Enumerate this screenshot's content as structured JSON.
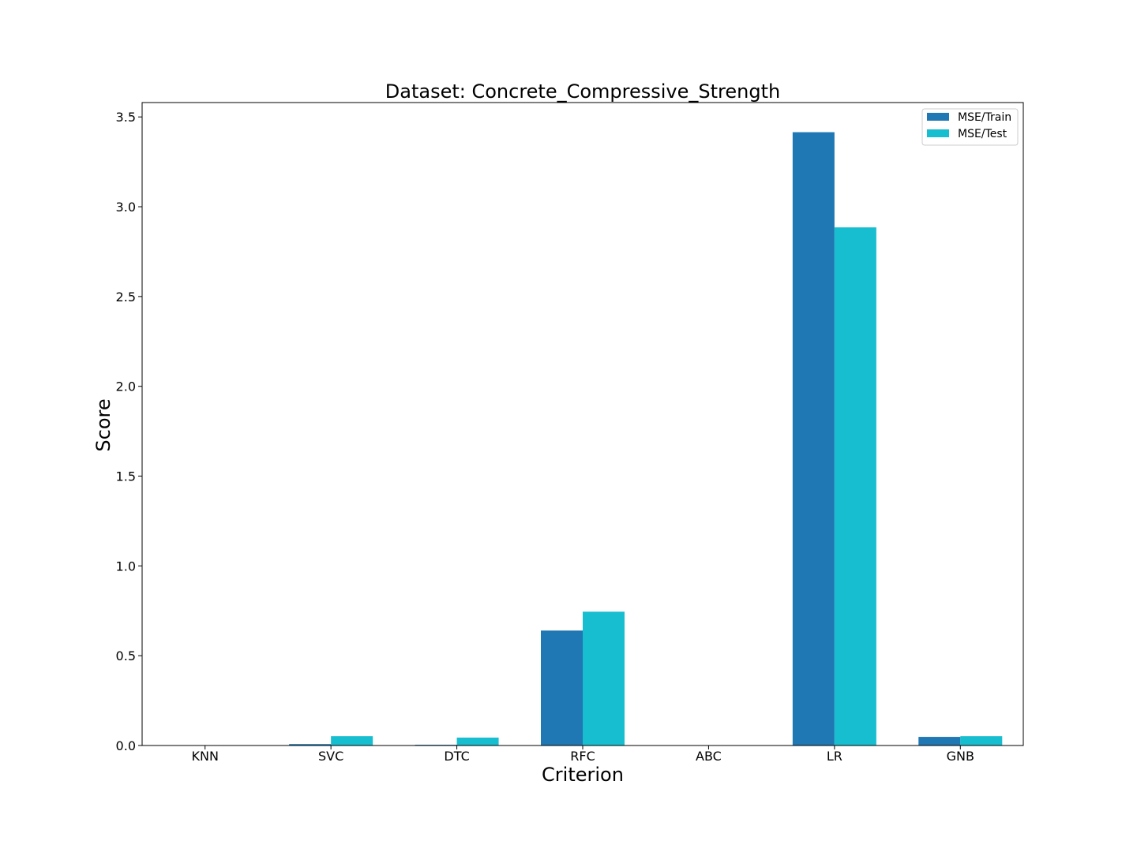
{
  "chart_data": {
    "type": "bar",
    "title": "Dataset: Concrete_Compressive_Strength",
    "xlabel": "Criterion",
    "ylabel": "Score",
    "categories": [
      "KNN",
      "SVC",
      "DTC",
      "RFC",
      "ABC",
      "LR",
      "GNB"
    ],
    "series": [
      {
        "name": "MSE/Train",
        "color": "#1f77b4",
        "values": [
          0.0,
          0.008,
          0.004,
          0.64,
          0.0,
          3.415,
          0.048
        ]
      },
      {
        "name": "MSE/Test",
        "color": "#17becf",
        "values": [
          0.0,
          0.052,
          0.044,
          0.745,
          0.0,
          2.885,
          0.052
        ]
      }
    ],
    "ylim": [
      0,
      3.58
    ],
    "yticks": [
      0.0,
      0.5,
      1.0,
      1.5,
      2.0,
      2.5,
      3.0,
      3.5
    ],
    "ytick_labels": [
      "0.0",
      "0.5",
      "1.0",
      "1.5",
      "2.0",
      "2.5",
      "3.0",
      "3.5"
    ],
    "grid": false,
    "legend_position": "top-right"
  }
}
